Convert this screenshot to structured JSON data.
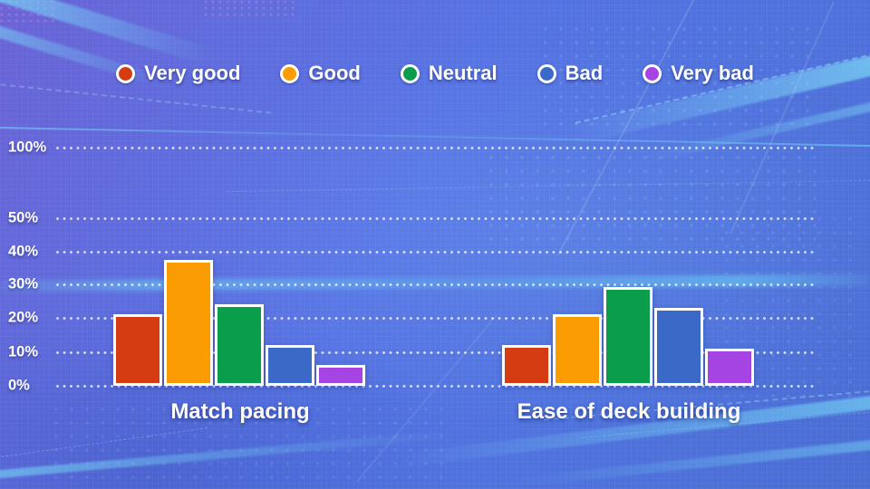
{
  "legend": {
    "items": [
      {
        "label": "Very good",
        "color": "#d63c12"
      },
      {
        "label": "Good",
        "color": "#fb9c03"
      },
      {
        "label": "Neutral",
        "color": "#0a9e4c"
      },
      {
        "label": "Bad",
        "color": "#3b69c7"
      },
      {
        "label": "Very bad",
        "color": "#a644e3"
      }
    ]
  },
  "chart_data": {
    "type": "bar",
    "title": "",
    "categories": [
      "Match pacing",
      "Ease of deck building"
    ],
    "series": [
      {
        "name": "Very good",
        "color": "#d63c12",
        "values": [
          21,
          12
        ]
      },
      {
        "name": "Good",
        "color": "#fb9c03",
        "values": [
          37,
          21
        ]
      },
      {
        "name": "Neutral",
        "color": "#0a9e4c",
        "values": [
          24,
          29
        ]
      },
      {
        "name": "Bad",
        "color": "#3b69c7",
        "values": [
          12,
          23
        ]
      },
      {
        "name": "Very bad",
        "color": "#a644e3",
        "values": [
          6,
          11
        ]
      }
    ],
    "unit": "%",
    "y_ticks": [
      "100%",
      "50%",
      "40%",
      "30%",
      "20%",
      "10%",
      "0%"
    ],
    "ylim": [
      0,
      100
    ],
    "axis_note": "vertical axis compressed above 50%",
    "grid": "dotted horizontal white lines",
    "legend_position": "top center",
    "background_accent_colors": {
      "base_blue": "#5673e3",
      "violet_tint": "#6a63d6",
      "cyan_streaks": "#74dcf8"
    }
  }
}
